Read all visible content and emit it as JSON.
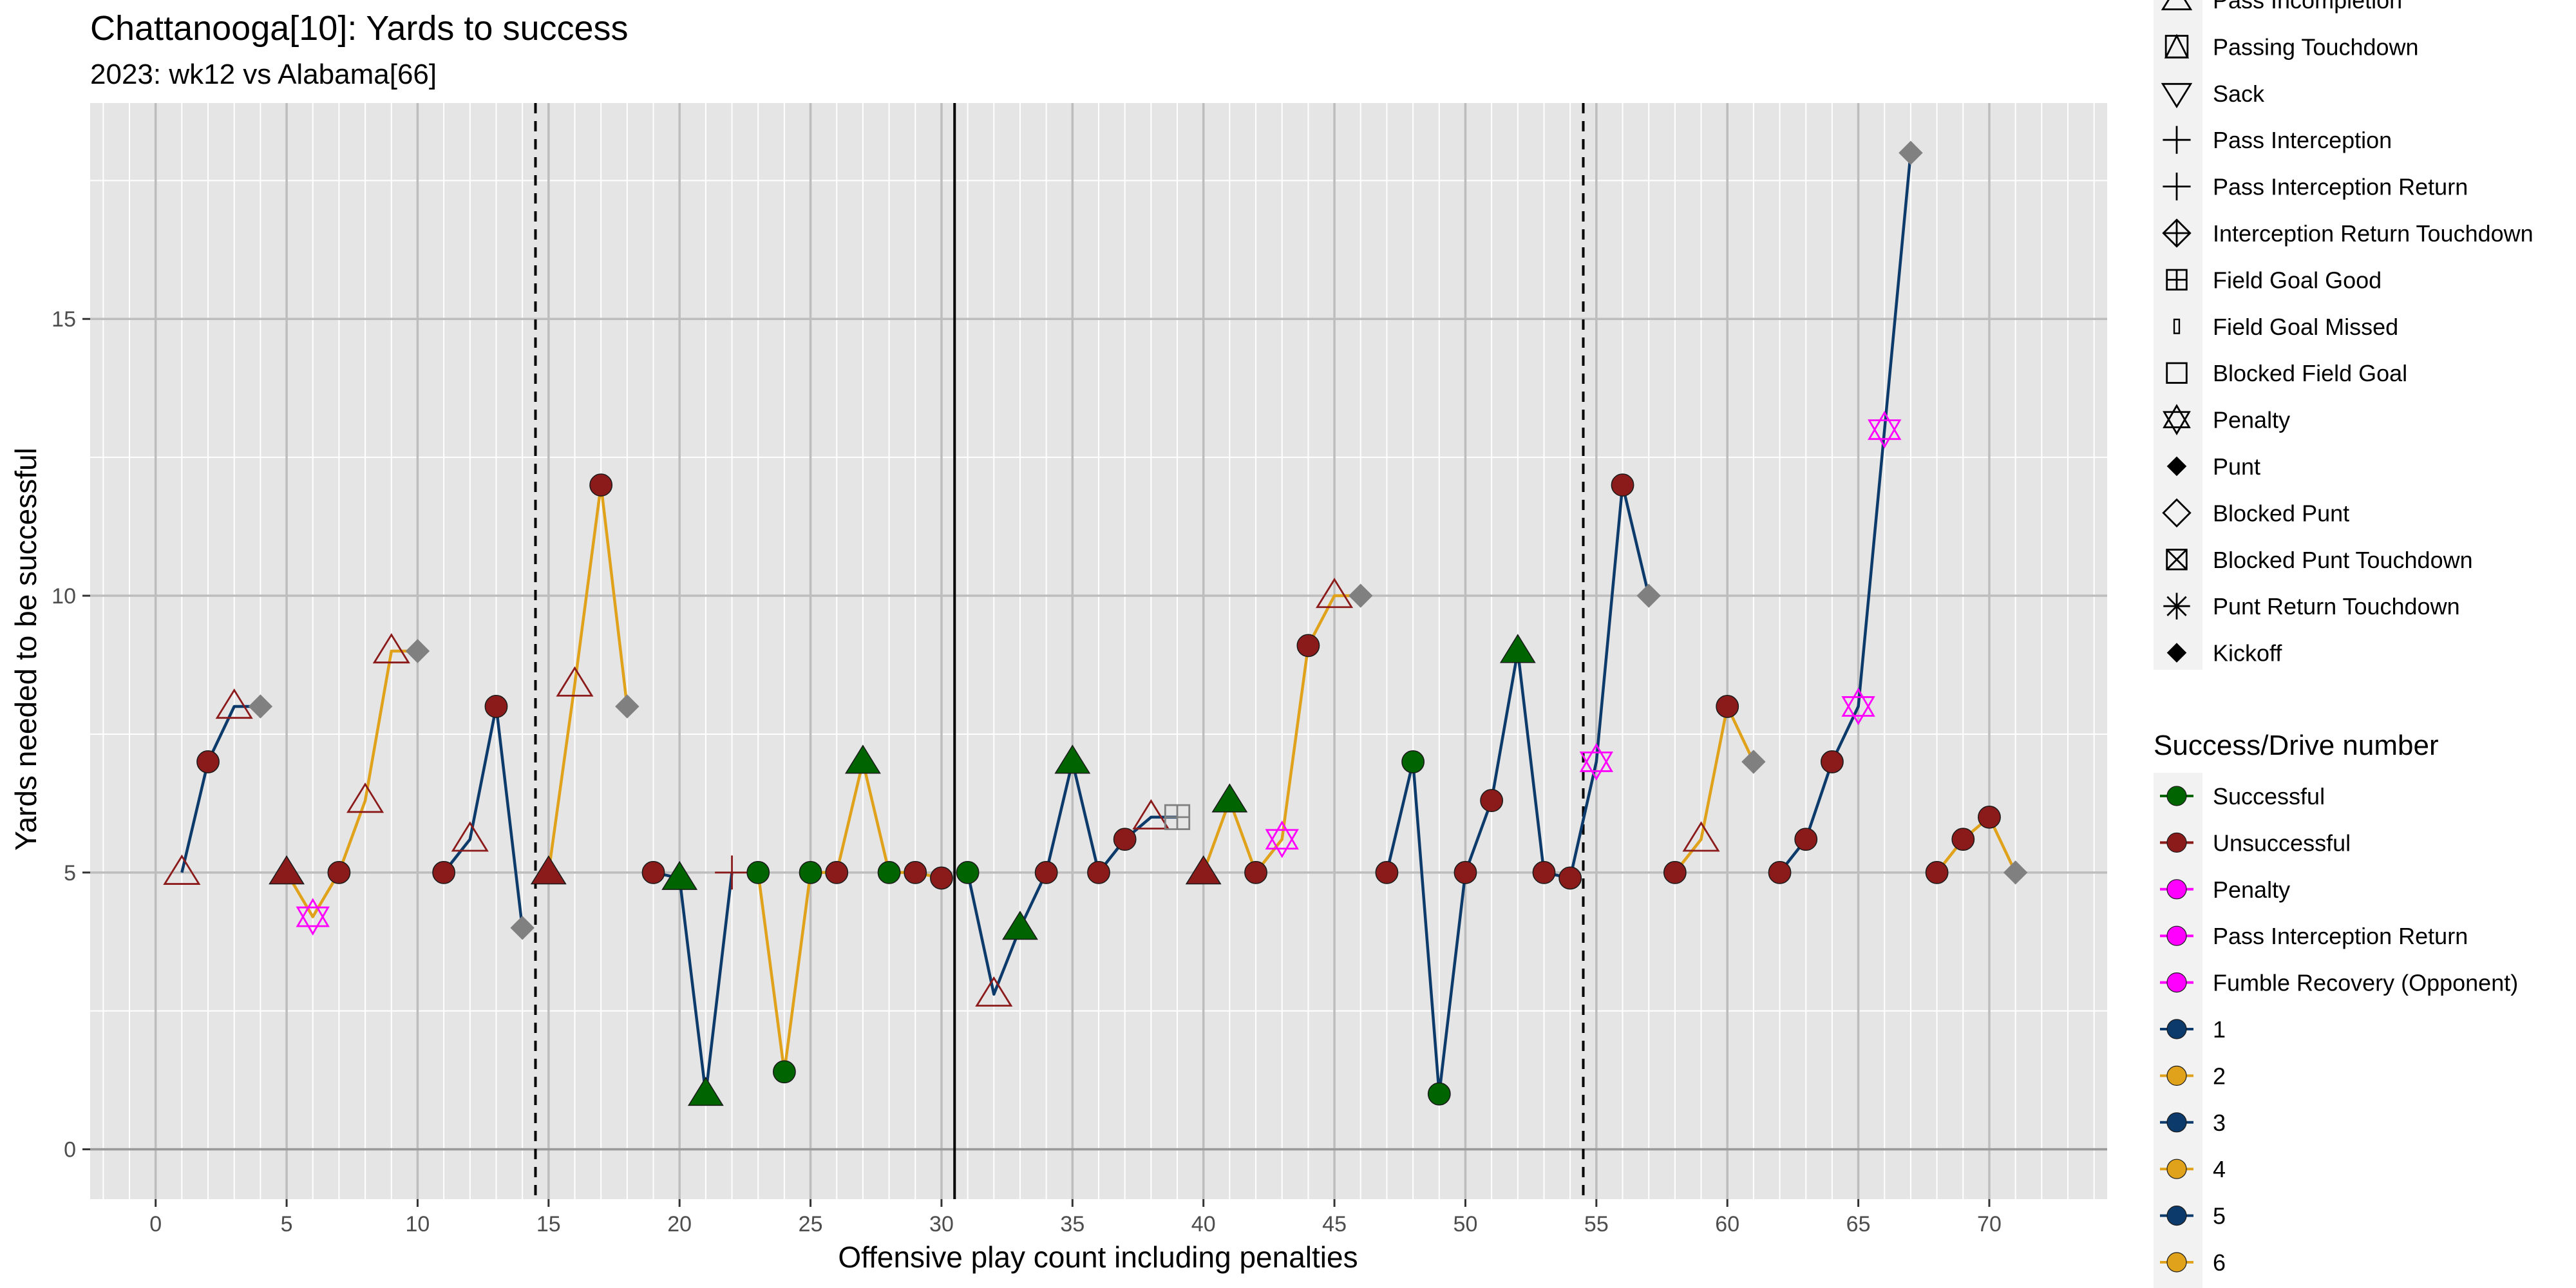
{
  "chart_data": {
    "type": "scatter",
    "title": "Chattanooga[10]: Yards to success",
    "subtitle": "2023: wk12 vs Alabama[66]",
    "xlabel": "Offensive play count including penalties",
    "ylabel": "Yards needed to be successful",
    "xlim": [
      -2.5,
      74.5
    ],
    "ylim": [
      -0.9,
      18.9
    ],
    "xticks": [
      0,
      5,
      10,
      15,
      20,
      25,
      30,
      35,
      40,
      45,
      50,
      55,
      60,
      65,
      70
    ],
    "yticks": [
      0,
      5,
      10,
      15
    ],
    "grid": true,
    "vlines_dashed": [
      14.5,
      54.5
    ],
    "vline_solid": 30.5,
    "colors": {
      "successful": "#006400",
      "unsuccessful": "#8b1a1a",
      "penalty": "#ff00ff",
      "drive_odd": "#0b3a6b",
      "drive_even": "#e0a21a",
      "end_marker": "#808080",
      "panel_bg": "#e5e5e5"
    },
    "drive_lines": [
      {
        "drive": 1,
        "points": [
          [
            1,
            5
          ],
          [
            2,
            7
          ],
          [
            3,
            8
          ],
          [
            4,
            8
          ]
        ]
      },
      {
        "drive": 2,
        "points": [
          [
            5,
            5
          ],
          [
            6,
            4.2
          ],
          [
            7,
            5
          ],
          [
            8,
            6.3
          ],
          [
            9,
            9
          ],
          [
            10,
            9
          ]
        ]
      },
      {
        "drive": 3,
        "points": [
          [
            11,
            5
          ],
          [
            12,
            5.6
          ],
          [
            13,
            8
          ],
          [
            14,
            4
          ]
        ]
      },
      {
        "drive": 4,
        "points": [
          [
            15,
            5
          ],
          [
            16,
            8.4
          ],
          [
            17,
            12
          ],
          [
            18,
            8
          ]
        ]
      },
      {
        "drive": 5,
        "points": [
          [
            19,
            5
          ],
          [
            20,
            4.9
          ],
          [
            21,
            1
          ],
          [
            22,
            5
          ]
        ]
      },
      {
        "drive": 6,
        "points": [
          [
            23,
            5
          ],
          [
            24,
            1.4
          ],
          [
            25,
            5
          ],
          [
            26,
            5
          ],
          [
            27,
            7
          ],
          [
            28,
            5
          ],
          [
            29,
            5
          ],
          [
            30,
            4.9
          ]
        ]
      },
      {
        "drive": 7,
        "points": [
          [
            31,
            5
          ],
          [
            32,
            2.8
          ],
          [
            33,
            4
          ],
          [
            34,
            5
          ],
          [
            35,
            7
          ],
          [
            36,
            5
          ],
          [
            37,
            5.6
          ],
          [
            38,
            6
          ],
          [
            39,
            6
          ]
        ]
      },
      {
        "drive": 8,
        "points": [
          [
            40,
            5
          ],
          [
            41,
            6.3
          ],
          [
            42,
            5
          ],
          [
            43,
            5.6
          ],
          [
            44,
            9.1
          ],
          [
            45,
            10
          ],
          [
            46,
            10
          ]
        ]
      },
      {
        "drive": 9,
        "points": [
          [
            47,
            5
          ],
          [
            48,
            7
          ],
          [
            49,
            1
          ],
          [
            50,
            5
          ],
          [
            51,
            6.3
          ],
          [
            52,
            9
          ],
          [
            53,
            5
          ],
          [
            54,
            4.9
          ],
          [
            55,
            7
          ],
          [
            56,
            12
          ],
          [
            57,
            10
          ]
        ]
      },
      {
        "drive": 10,
        "points": [
          [
            58,
            5
          ],
          [
            59,
            5.6
          ],
          [
            60,
            8
          ],
          [
            61,
            7
          ]
        ]
      },
      {
        "drive": 11,
        "points": [
          [
            62,
            5
          ],
          [
            63,
            5.6
          ],
          [
            64,
            7
          ],
          [
            65,
            8
          ],
          [
            66,
            13
          ],
          [
            67,
            18
          ]
        ]
      },
      {
        "drive": 12,
        "points": [
          [
            68,
            5
          ],
          [
            69,
            5.6
          ],
          [
            70,
            6
          ],
          [
            71,
            5
          ]
        ]
      }
    ],
    "points": [
      {
        "x": 1,
        "y": 5,
        "shape": "triangle-open",
        "status": "unsuccessful"
      },
      {
        "x": 2,
        "y": 7,
        "shape": "circle",
        "status": "unsuccessful"
      },
      {
        "x": 3,
        "y": 8,
        "shape": "triangle-open",
        "status": "unsuccessful"
      },
      {
        "x": 4,
        "y": 8,
        "shape": "diamond",
        "status": "end"
      },
      {
        "x": 5,
        "y": 5,
        "shape": "triangle",
        "status": "unsuccessful"
      },
      {
        "x": 6,
        "y": 4.2,
        "shape": "star-of-david",
        "status": "penalty"
      },
      {
        "x": 7,
        "y": 5,
        "shape": "circle",
        "status": "unsuccessful"
      },
      {
        "x": 8,
        "y": 6.3,
        "shape": "triangle-open",
        "status": "unsuccessful"
      },
      {
        "x": 9,
        "y": 9,
        "shape": "triangle-open",
        "status": "unsuccessful"
      },
      {
        "x": 10,
        "y": 9,
        "shape": "diamond",
        "status": "end"
      },
      {
        "x": 11,
        "y": 5,
        "shape": "circle",
        "status": "unsuccessful"
      },
      {
        "x": 12,
        "y": 5.6,
        "shape": "triangle-open",
        "status": "unsuccessful"
      },
      {
        "x": 13,
        "y": 8,
        "shape": "circle",
        "status": "unsuccessful"
      },
      {
        "x": 14,
        "y": 4,
        "shape": "diamond",
        "status": "end"
      },
      {
        "x": 15,
        "y": 5,
        "shape": "triangle",
        "status": "unsuccessful"
      },
      {
        "x": 16,
        "y": 8.4,
        "shape": "triangle-open",
        "status": "unsuccessful"
      },
      {
        "x": 17,
        "y": 12,
        "shape": "circle",
        "status": "unsuccessful"
      },
      {
        "x": 18,
        "y": 8,
        "shape": "diamond",
        "status": "end"
      },
      {
        "x": 19,
        "y": 5,
        "shape": "circle",
        "status": "unsuccessful"
      },
      {
        "x": 20,
        "y": 4.9,
        "shape": "triangle",
        "status": "successful"
      },
      {
        "x": 21,
        "y": 1,
        "shape": "triangle",
        "status": "successful"
      },
      {
        "x": 22,
        "y": 5,
        "shape": "plus",
        "status": "unsuccessful"
      },
      {
        "x": 23,
        "y": 5,
        "shape": "circle",
        "status": "successful"
      },
      {
        "x": 24,
        "y": 1.4,
        "shape": "circle",
        "status": "successful"
      },
      {
        "x": 25,
        "y": 5,
        "shape": "circle",
        "status": "successful"
      },
      {
        "x": 26,
        "y": 5,
        "shape": "circle",
        "status": "unsuccessful"
      },
      {
        "x": 27,
        "y": 7,
        "shape": "triangle",
        "status": "successful"
      },
      {
        "x": 28,
        "y": 5,
        "shape": "circle",
        "status": "successful"
      },
      {
        "x": 29,
        "y": 5,
        "shape": "circle",
        "status": "unsuccessful"
      },
      {
        "x": 30,
        "y": 4.9,
        "shape": "circle",
        "status": "unsuccessful"
      },
      {
        "x": 31,
        "y": 5,
        "shape": "circle",
        "status": "successful"
      },
      {
        "x": 32,
        "y": 2.8,
        "shape": "triangle-open",
        "status": "unsuccessful"
      },
      {
        "x": 33,
        "y": 4,
        "shape": "triangle",
        "status": "successful"
      },
      {
        "x": 34,
        "y": 5,
        "shape": "circle",
        "status": "unsuccessful"
      },
      {
        "x": 35,
        "y": 7,
        "shape": "triangle",
        "status": "successful"
      },
      {
        "x": 36,
        "y": 5,
        "shape": "circle",
        "status": "unsuccessful"
      },
      {
        "x": 37,
        "y": 5.6,
        "shape": "circle",
        "status": "unsuccessful"
      },
      {
        "x": 38,
        "y": 6,
        "shape": "triangle-open",
        "status": "unsuccessful"
      },
      {
        "x": 39,
        "y": 6,
        "shape": "square-plus",
        "status": "end"
      },
      {
        "x": 40,
        "y": 5,
        "shape": "triangle",
        "status": "unsuccessful"
      },
      {
        "x": 41,
        "y": 6.3,
        "shape": "triangle",
        "status": "successful"
      },
      {
        "x": 42,
        "y": 5,
        "shape": "circle",
        "status": "unsuccessful"
      },
      {
        "x": 43,
        "y": 5.6,
        "shape": "star-of-david",
        "status": "penalty"
      },
      {
        "x": 44,
        "y": 9.1,
        "shape": "circle",
        "status": "unsuccessful"
      },
      {
        "x": 45,
        "y": 10,
        "shape": "triangle-open",
        "status": "unsuccessful"
      },
      {
        "x": 46,
        "y": 10,
        "shape": "diamond",
        "status": "end"
      },
      {
        "x": 47,
        "y": 5,
        "shape": "circle",
        "status": "unsuccessful"
      },
      {
        "x": 48,
        "y": 7,
        "shape": "circle",
        "status": "successful"
      },
      {
        "x": 49,
        "y": 1,
        "shape": "circle",
        "status": "successful"
      },
      {
        "x": 50,
        "y": 5,
        "shape": "circle",
        "status": "unsuccessful"
      },
      {
        "x": 51,
        "y": 6.3,
        "shape": "circle",
        "status": "unsuccessful"
      },
      {
        "x": 52,
        "y": 9,
        "shape": "triangle",
        "status": "successful"
      },
      {
        "x": 53,
        "y": 5,
        "shape": "circle",
        "status": "unsuccessful"
      },
      {
        "x": 54,
        "y": 4.9,
        "shape": "circle",
        "status": "unsuccessful"
      },
      {
        "x": 55,
        "y": 7,
        "shape": "star-of-david",
        "status": "penalty"
      },
      {
        "x": 56,
        "y": 12,
        "shape": "circle",
        "status": "unsuccessful"
      },
      {
        "x": 57,
        "y": 10,
        "shape": "diamond",
        "status": "end"
      },
      {
        "x": 58,
        "y": 5,
        "shape": "circle",
        "status": "unsuccessful"
      },
      {
        "x": 59,
        "y": 5.6,
        "shape": "triangle-open",
        "status": "unsuccessful"
      },
      {
        "x": 60,
        "y": 8,
        "shape": "circle",
        "status": "unsuccessful"
      },
      {
        "x": 61,
        "y": 7,
        "shape": "diamond",
        "status": "end"
      },
      {
        "x": 62,
        "y": 5,
        "shape": "circle",
        "status": "unsuccessful"
      },
      {
        "x": 63,
        "y": 5.6,
        "shape": "circle",
        "status": "unsuccessful"
      },
      {
        "x": 64,
        "y": 7,
        "shape": "circle",
        "status": "unsuccessful"
      },
      {
        "x": 65,
        "y": 8,
        "shape": "star-of-david",
        "status": "penalty"
      },
      {
        "x": 66,
        "y": 13,
        "shape": "star-of-david",
        "status": "penalty"
      },
      {
        "x": 67,
        "y": 18,
        "shape": "diamond",
        "status": "end"
      },
      {
        "x": 68,
        "y": 5,
        "shape": "circle",
        "status": "unsuccessful"
      },
      {
        "x": 69,
        "y": 5.6,
        "shape": "circle",
        "status": "unsuccessful"
      },
      {
        "x": 70,
        "y": 6,
        "shape": "circle",
        "status": "unsuccessful"
      },
      {
        "x": 71,
        "y": 5,
        "shape": "diamond",
        "status": "end"
      }
    ],
    "legend_shapes": [
      {
        "label": "Pass Incompletion",
        "shape": "triangle-open"
      },
      {
        "label": "Passing Touchdown",
        "shape": "triangle-square"
      },
      {
        "label": "Sack",
        "shape": "triangle-down-open"
      },
      {
        "label": "Pass Interception",
        "shape": "plus"
      },
      {
        "label": "Pass Interception Return",
        "shape": "plus"
      },
      {
        "label": "Interception Return Touchdown",
        "shape": "diamond-plus"
      },
      {
        "label": "Field Goal Good",
        "shape": "square-plus"
      },
      {
        "label": "Field Goal Missed",
        "shape": "thin-rect"
      },
      {
        "label": "Blocked Field Goal",
        "shape": "square-open"
      },
      {
        "label": "Penalty",
        "shape": "star-of-david-open"
      },
      {
        "label": "Punt",
        "shape": "diamond-filled"
      },
      {
        "label": "Blocked Punt",
        "shape": "diamond-open"
      },
      {
        "label": "Blocked Punt Touchdown",
        "shape": "square-x"
      },
      {
        "label": "Punt Return Touchdown",
        "shape": "asterisk"
      },
      {
        "label": "Kickoff",
        "shape": "diamond-filled"
      }
    ],
    "legend_color_title": "Success/Drive number",
    "legend_colors": [
      {
        "label": "Successful",
        "color": "#006400"
      },
      {
        "label": "Unsuccessful",
        "color": "#8b1a1a"
      },
      {
        "label": "Penalty",
        "color": "#ff00ff"
      },
      {
        "label": "Pass Interception Return",
        "color": "#ff00ff"
      },
      {
        "label": "Fumble Recovery (Opponent)",
        "color": "#ff00ff"
      },
      {
        "label": "1",
        "color": "#0b3a6b"
      },
      {
        "label": "2",
        "color": "#e0a21a"
      },
      {
        "label": "3",
        "color": "#0b3a6b"
      },
      {
        "label": "4",
        "color": "#e0a21a"
      },
      {
        "label": "5",
        "color": "#0b3a6b"
      },
      {
        "label": "6",
        "color": "#e0a21a"
      }
    ]
  }
}
